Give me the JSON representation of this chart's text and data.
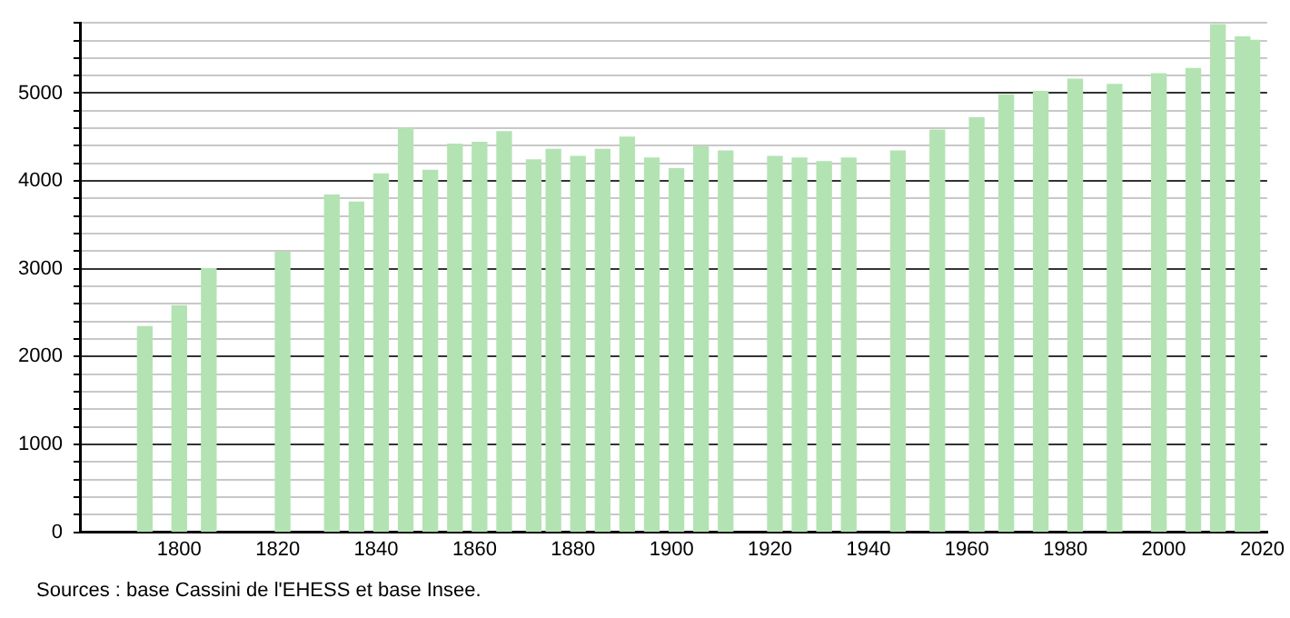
{
  "chart_data": {
    "type": "bar",
    "x": [
      1793,
      1800,
      1806,
      1821,
      1831,
      1836,
      1841,
      1846,
      1851,
      1856,
      1861,
      1866,
      1872,
      1876,
      1881,
      1886,
      1891,
      1896,
      1901,
      1906,
      1911,
      1921,
      1926,
      1931,
      1936,
      1946,
      1954,
      1962,
      1968,
      1975,
      1982,
      1990,
      1999,
      2006,
      2011,
      2016,
      2018
    ],
    "values": [
      2340,
      2580,
      3000,
      3190,
      3840,
      3760,
      4080,
      4600,
      4120,
      4420,
      4440,
      4560,
      4240,
      4360,
      4280,
      4360,
      4500,
      4260,
      4140,
      4390,
      4340,
      4280,
      4260,
      4220,
      4260,
      4340,
      4580,
      4720,
      4980,
      5020,
      5160,
      5100,
      5220,
      5280,
      5780,
      5640,
      5600
    ],
    "color": "#b3e3b3",
    "xlim": [
      1780,
      2021
    ],
    "xticks": [
      1800,
      1820,
      1840,
      1860,
      1880,
      1900,
      1920,
      1940,
      1960,
      1980,
      2000,
      2020
    ],
    "ylim": [
      0,
      5800
    ],
    "yticks": [
      0,
      {
        "value": 200,
        "label": null
      },
      {
        "value": 400,
        "label": null
      },
      {
        "value": 600,
        "label": null
      },
      {
        "value": 800,
        "label": null
      },
      1000,
      {
        "value": 1200,
        "label": null
      },
      {
        "value": 1400,
        "label": null
      },
      {
        "value": 1600,
        "label": null
      },
      {
        "value": 1800,
        "label": null
      },
      2000,
      {
        "value": 2200,
        "label": null
      },
      {
        "value": 2400,
        "label": null
      },
      {
        "value": 2600,
        "label": null
      },
      {
        "value": 2800,
        "label": null
      },
      3000,
      {
        "value": 3200,
        "label": null
      },
      {
        "value": 3400,
        "label": null
      },
      {
        "value": 3600,
        "label": null
      },
      {
        "value": 3800,
        "label": null
      },
      4000,
      {
        "value": 4200,
        "label": null
      },
      {
        "value": 4400,
        "label": null
      },
      {
        "value": 4600,
        "label": null
      },
      {
        "value": 4800,
        "label": null
      },
      5000,
      {
        "value": 5200,
        "label": null
      },
      {
        "value": 5400,
        "label": null
      },
      {
        "value": 5600,
        "label": null
      },
      {
        "value": 5800,
        "label": null
      }
    ],
    "grid": "y",
    "legend": false,
    "annotations": [
      "Sources : base Cassini de l'EHESS et base Insee."
    ]
  }
}
